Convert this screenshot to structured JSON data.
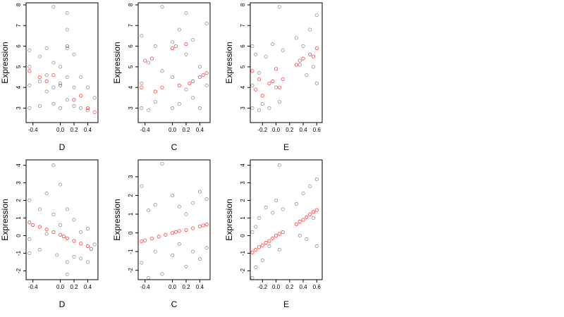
{
  "chart_data": [
    {
      "type": "scatter",
      "xlabel": "D",
      "ylabel": "Expression",
      "xticks": [
        -0.4,
        0.0,
        0.2,
        0.4
      ],
      "xtick_labels": [
        "-0.4",
        "0.0",
        "0.2",
        "0.4"
      ],
      "yticks": [
        3,
        4,
        5,
        6,
        7,
        8
      ],
      "ytick_labels": [
        "3",
        "4",
        "5",
        "6",
        "7",
        "8"
      ],
      "xlim": [
        -0.5,
        0.55
      ],
      "ylim": [
        2.3,
        8.1
      ],
      "series": [
        {
          "color": "#000000",
          "shape": "open-circle",
          "x": [
            -0.45,
            -0.45,
            -0.45,
            -0.45,
            -0.3,
            -0.3,
            -0.3,
            -0.2,
            -0.2,
            -0.2,
            -0.1,
            -0.1,
            -0.1,
            -0.1,
            0.0,
            0.0,
            0.0,
            0.1,
            0.1,
            0.1,
            0.1,
            0.1,
            0.2,
            0.2,
            0.2,
            0.3,
            0.3,
            0.4,
            0.4,
            0.5
          ],
          "y": [
            5.8,
            4.1,
            3.0,
            5.0,
            5.5,
            4.3,
            3.1,
            5.9,
            4.6,
            3.8,
            7.9,
            5.2,
            4.0,
            3.2,
            5.0,
            4.2,
            3.0,
            7.6,
            6.8,
            5.9,
            4.5,
            3.4,
            4.0,
            3.1,
            5.6,
            4.5,
            3.0,
            4.0,
            2.9,
            3.5
          ]
        },
        {
          "color": "#ff0000",
          "shape": "open-circle",
          "x": [
            -0.45,
            -0.3,
            -0.2,
            -0.1,
            0.0,
            0.1,
            0.2,
            0.3,
            0.4,
            0.5
          ],
          "y": [
            4.8,
            4.5,
            4.3,
            4.6,
            4.1,
            6.0,
            3.4,
            3.6,
            3.0,
            2.8
          ]
        }
      ]
    },
    {
      "type": "scatter",
      "xlabel": "C",
      "ylabel": "Expression",
      "xticks": [
        -0.4,
        0.0,
        0.2,
        0.4
      ],
      "xtick_labels": [
        "-0.4",
        "0.0",
        "0.2",
        "0.4"
      ],
      "yticks": [
        3,
        4,
        5,
        6,
        7,
        8
      ],
      "ytick_labels": [
        "3",
        "4",
        "5",
        "6",
        "7",
        "8"
      ],
      "xlim": [
        -0.5,
        0.55
      ],
      "ylim": [
        2.3,
        8.1
      ],
      "series": [
        {
          "color": "#000000",
          "shape": "open-circle",
          "x": [
            -0.45,
            -0.45,
            -0.45,
            -0.35,
            -0.35,
            -0.25,
            -0.25,
            -0.15,
            -0.15,
            0.0,
            0.0,
            0.0,
            0.1,
            0.1,
            0.2,
            0.2,
            0.2,
            0.3,
            0.3,
            0.4,
            0.4,
            0.5,
            0.5
          ],
          "y": [
            6.5,
            3.0,
            4.2,
            5.2,
            2.9,
            6.0,
            3.3,
            7.9,
            4.8,
            6.2,
            3.0,
            4.5,
            6.8,
            3.2,
            7.6,
            5.6,
            3.9,
            6.3,
            3.5,
            5.0,
            3.0,
            7.1,
            4.1
          ]
        },
        {
          "color": "#ff0000",
          "shape": "open-circle",
          "x": [
            -0.45,
            -0.4,
            -0.3,
            -0.25,
            -0.15,
            0.0,
            0.05,
            0.1,
            0.2,
            0.25,
            0.3,
            0.4,
            0.45,
            0.5
          ],
          "y": [
            4.0,
            5.3,
            5.4,
            3.8,
            4.0,
            5.9,
            6.0,
            4.1,
            6.1,
            4.2,
            4.3,
            4.5,
            4.6,
            4.7
          ]
        }
      ]
    },
    {
      "type": "scatter",
      "xlabel": "E",
      "ylabel": "Expression",
      "xticks": [
        -0.2,
        0.0,
        0.2,
        0.4,
        0.6
      ],
      "xtick_labels": [
        "-0.2",
        "0.0",
        "0.2",
        "0.4",
        "0.6"
      ],
      "yticks": [
        3,
        4,
        5,
        6,
        7,
        8
      ],
      "ytick_labels": [
        "3",
        "4",
        "5",
        "6",
        "7",
        "8"
      ],
      "xlim": [
        -0.38,
        0.68
      ],
      "ylim": [
        2.3,
        8.1
      ],
      "series": [
        {
          "color": "#000000",
          "shape": "open-circle",
          "x": [
            -0.35,
            -0.35,
            -0.35,
            -0.3,
            -0.25,
            -0.25,
            -0.2,
            -0.15,
            -0.1,
            -0.05,
            0.0,
            0.05,
            0.05,
            0.1,
            0.3,
            0.35,
            0.4,
            0.45,
            0.5,
            0.55,
            0.6,
            0.6
          ],
          "y": [
            6.0,
            3.0,
            4.1,
            5.6,
            2.9,
            4.7,
            3.2,
            5.5,
            3.0,
            6.1,
            4.0,
            7.9,
            3.3,
            5.8,
            6.4,
            5.1,
            6.0,
            4.6,
            6.8,
            5.0,
            7.5,
            4.2
          ]
        },
        {
          "color": "#ff0000",
          "shape": "open-circle",
          "x": [
            -0.35,
            -0.3,
            -0.25,
            -0.2,
            -0.1,
            -0.05,
            0.0,
            0.05,
            0.1,
            0.3,
            0.35,
            0.4,
            0.5,
            0.55,
            0.6
          ],
          "y": [
            4.8,
            3.9,
            4.4,
            3.6,
            4.2,
            4.3,
            4.9,
            4.0,
            4.4,
            5.1,
            5.3,
            5.4,
            5.6,
            5.5,
            5.9
          ]
        }
      ]
    },
    {
      "type": "scatter",
      "xlabel": "D",
      "ylabel": "Expression",
      "xticks": [
        -0.4,
        0.0,
        0.2,
        0.4
      ],
      "xtick_labels": [
        "-0.4",
        "0.0",
        "0.2",
        "0.4"
      ],
      "yticks": [
        -2,
        -1,
        0,
        1,
        2,
        3,
        4
      ],
      "ytick_labels": [
        "-2",
        "-1",
        "0",
        "1",
        "2",
        "3",
        "4"
      ],
      "xlim": [
        -0.5,
        0.55
      ],
      "ylim": [
        -2.5,
        4.3
      ],
      "series": [
        {
          "color": "#000000",
          "shape": "open-circle",
          "x": [
            -0.45,
            -0.45,
            -0.45,
            -0.3,
            -0.3,
            -0.2,
            -0.2,
            -0.1,
            -0.1,
            -0.05,
            0.0,
            0.0,
            0.1,
            0.1,
            0.1,
            0.2,
            0.2,
            0.3,
            0.3,
            0.4,
            0.4,
            0.5
          ],
          "y": [
            2.0,
            -0.2,
            -1.0,
            1.5,
            -0.8,
            2.4,
            0.1,
            4.0,
            1.2,
            -1.1,
            2.9,
            0.6,
            1.5,
            -1.5,
            -2.2,
            0.9,
            -1.2,
            0.2,
            -1.3,
            0.4,
            -1.5,
            -0.5
          ]
        },
        {
          "color": "#ff0000",
          "shape": "open-circle",
          "x": [
            -0.45,
            -0.4,
            -0.3,
            -0.2,
            -0.1,
            0.0,
            0.05,
            0.1,
            0.2,
            0.3,
            0.4,
            0.45
          ],
          "y": [
            0.75,
            0.6,
            0.5,
            0.35,
            0.2,
            0.05,
            -0.05,
            -0.15,
            -0.3,
            -0.45,
            -0.6,
            -0.75
          ]
        }
      ]
    },
    {
      "type": "scatter",
      "xlabel": "C",
      "ylabel": "Expression",
      "xticks": [
        -0.4,
        0.0,
        0.2,
        0.4
      ],
      "xtick_labels": [
        "-0.4",
        "0.0",
        "0.2",
        "0.4"
      ],
      "yticks": [
        -2,
        -1,
        0,
        1,
        2,
        3
      ],
      "ytick_labels": [
        "-2",
        "-1",
        "0",
        "1",
        "2",
        "3"
      ],
      "xlim": [
        -0.5,
        0.55
      ],
      "ylim": [
        -2.5,
        3.9
      ],
      "series": [
        {
          "color": "#000000",
          "shape": "open-circle",
          "x": [
            -0.45,
            -0.45,
            -0.35,
            -0.35,
            -0.25,
            -0.25,
            -0.15,
            -0.15,
            0.0,
            0.0,
            0.1,
            0.1,
            0.2,
            0.2,
            0.3,
            0.3,
            0.4,
            0.4,
            0.5,
            0.5
          ],
          "y": [
            2.5,
            -1.6,
            1.2,
            -2.4,
            1.5,
            -1.0,
            3.7,
            -2.2,
            2.0,
            -1.2,
            1.4,
            -0.6,
            1.0,
            -1.8,
            1.6,
            -1.0,
            2.2,
            -1.4,
            1.8,
            -0.8
          ]
        },
        {
          "color": "#ff0000",
          "shape": "open-circle",
          "x": [
            -0.45,
            -0.4,
            -0.3,
            -0.2,
            -0.1,
            0.0,
            0.05,
            0.1,
            0.2,
            0.3,
            0.4,
            0.45,
            0.5
          ],
          "y": [
            -0.45,
            -0.4,
            -0.3,
            -0.2,
            -0.1,
            0.0,
            0.05,
            0.1,
            0.15,
            0.25,
            0.35,
            0.4,
            0.45
          ]
        }
      ]
    },
    {
      "type": "scatter",
      "xlabel": "E",
      "ylabel": "Expression",
      "xticks": [
        -0.2,
        0.0,
        0.2,
        0.4,
        0.6
      ],
      "xtick_labels": [
        "-0.2",
        "0.0",
        "0.2",
        "0.4",
        "0.6"
      ],
      "yticks": [
        -2,
        -1,
        0,
        1,
        2,
        3,
        4
      ],
      "ytick_labels": [
        "-2",
        "-1",
        "0",
        "1",
        "2",
        "3",
        "4"
      ],
      "xlim": [
        -0.38,
        0.68
      ],
      "ylim": [
        -2.5,
        4.3
      ],
      "series": [
        {
          "color": "#000000",
          "shape": "open-circle",
          "x": [
            -0.35,
            -0.35,
            -0.3,
            -0.3,
            -0.25,
            -0.2,
            -0.15,
            -0.1,
            -0.05,
            0.0,
            0.05,
            0.05,
            0.1,
            0.3,
            0.35,
            0.4,
            0.45,
            0.5,
            0.55,
            0.6,
            0.6
          ],
          "y": [
            0.2,
            -2.4,
            0.5,
            -1.8,
            1.0,
            -1.4,
            1.6,
            -0.6,
            1.3,
            2.0,
            4.0,
            -0.8,
            1.5,
            1.8,
            0.0,
            2.4,
            -0.2,
            2.8,
            1.0,
            3.2,
            -0.6
          ]
        },
        {
          "color": "#ff0000",
          "shape": "open-circle",
          "x": [
            -0.35,
            -0.3,
            -0.25,
            -0.2,
            -0.15,
            -0.1,
            -0.05,
            0.0,
            0.05,
            0.1,
            0.3,
            0.35,
            0.4,
            0.45,
            0.5,
            0.55,
            0.6
          ],
          "y": [
            -0.95,
            -0.8,
            -0.65,
            -0.55,
            -0.4,
            -0.3,
            -0.15,
            0.0,
            0.1,
            0.2,
            0.65,
            0.8,
            0.9,
            1.05,
            1.2,
            1.35,
            1.45
          ]
        }
      ]
    }
  ]
}
